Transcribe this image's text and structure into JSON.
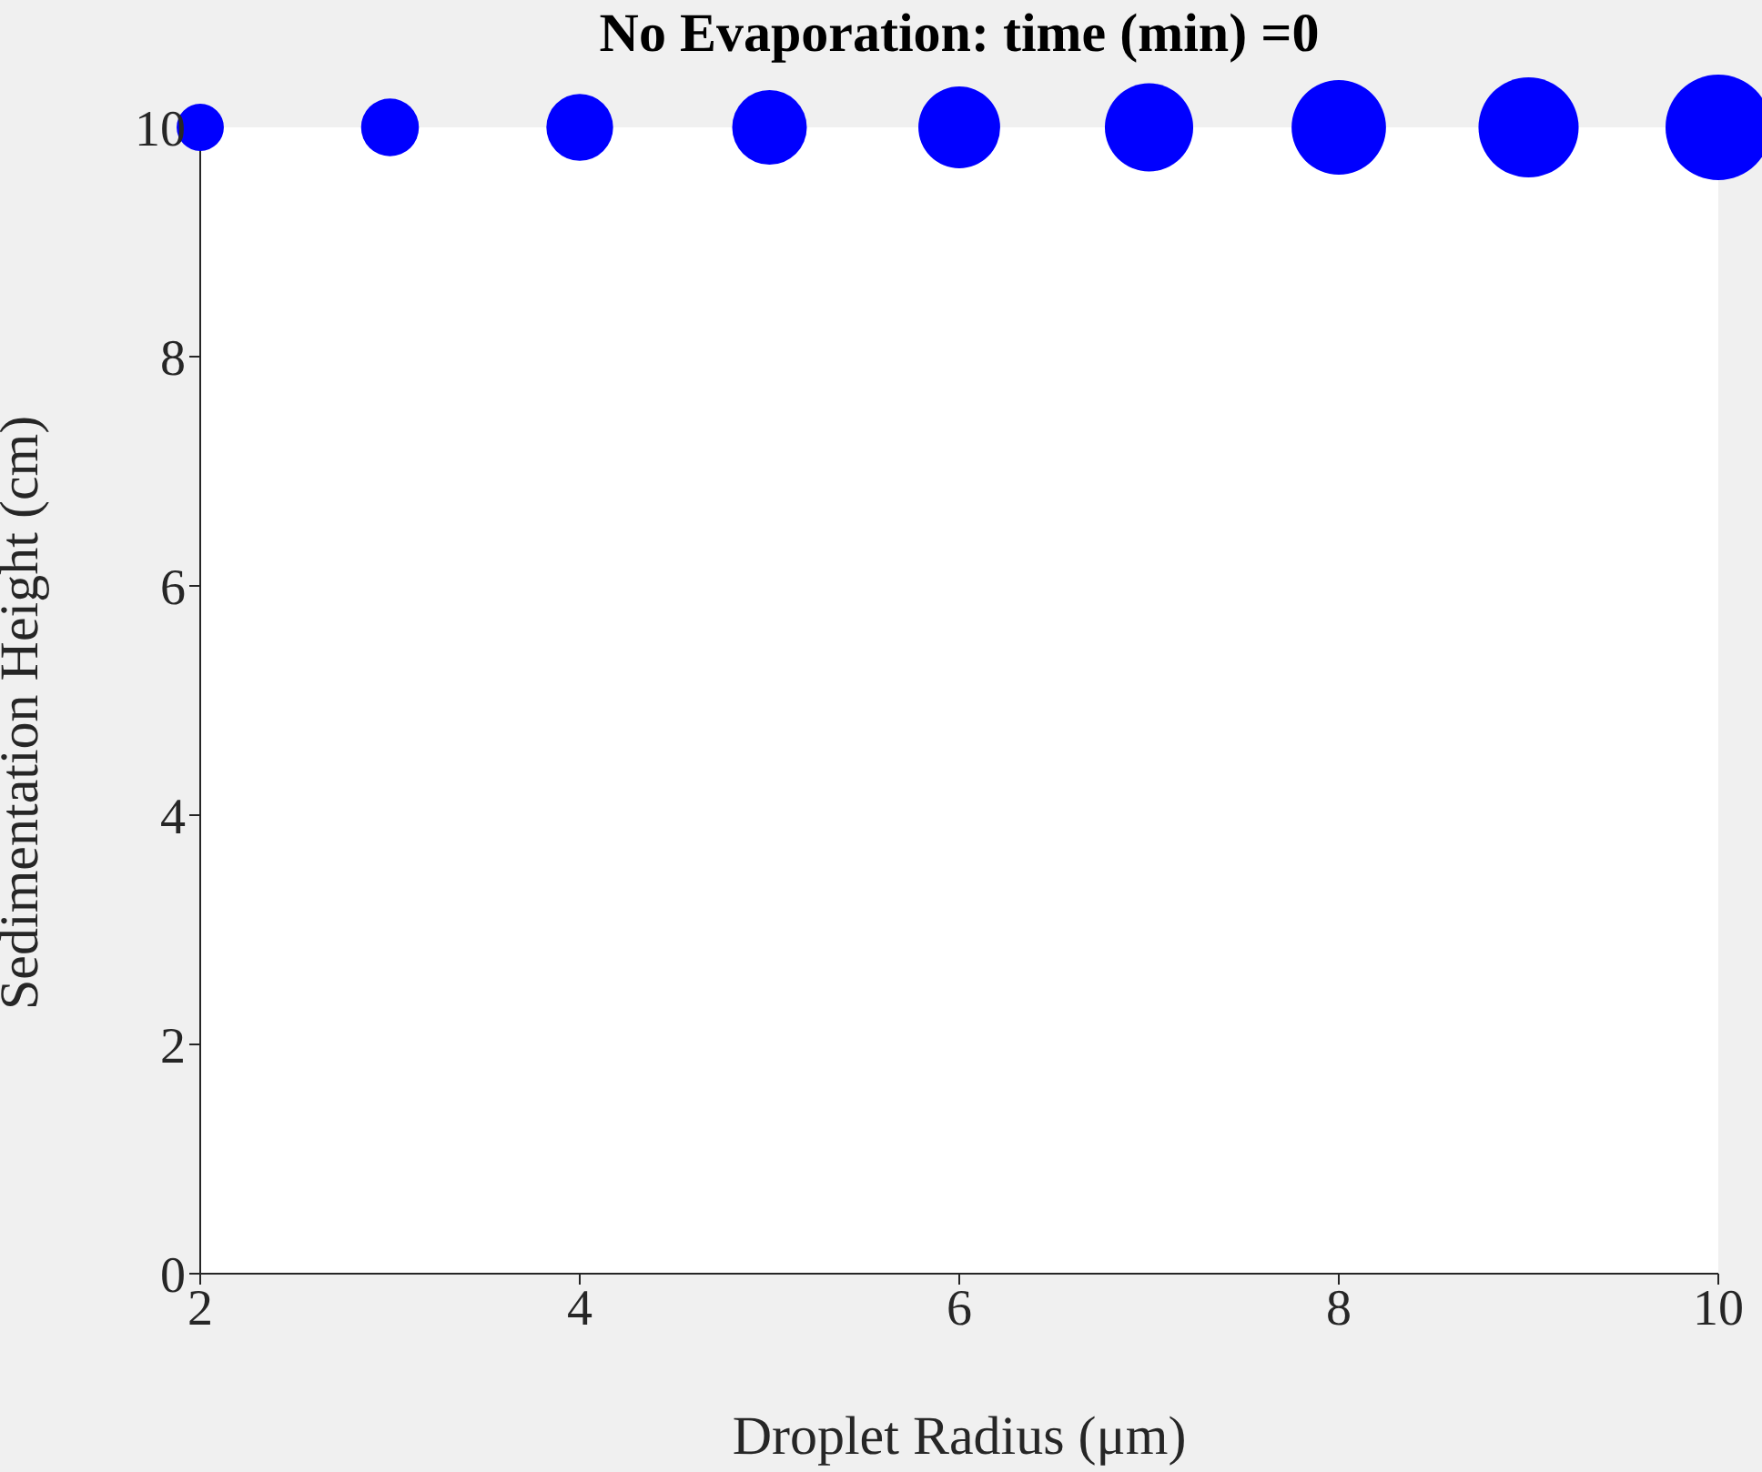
{
  "chart_data": {
    "type": "bubble",
    "title": "No Evaporation: time (min) =0",
    "xlabel": "Droplet Radius (μm)",
    "ylabel": "Sedimentation Height (cm)",
    "x": [
      2,
      3,
      4,
      5,
      6,
      7,
      8,
      9,
      10
    ],
    "values": [
      10,
      10,
      10,
      10,
      10,
      10,
      10,
      10,
      10
    ],
    "sizes": [
      0.2,
      0.3,
      0.4,
      0.5,
      0.6,
      0.7,
      0.8,
      0.9,
      1
    ],
    "color": "#0000ff",
    "xlim": [
      2,
      10
    ],
    "xticks": [
      2,
      4,
      6,
      8,
      10
    ],
    "ylim": [
      0,
      10
    ],
    "yticks": [
      0,
      2,
      4,
      6,
      8,
      10
    ]
  }
}
